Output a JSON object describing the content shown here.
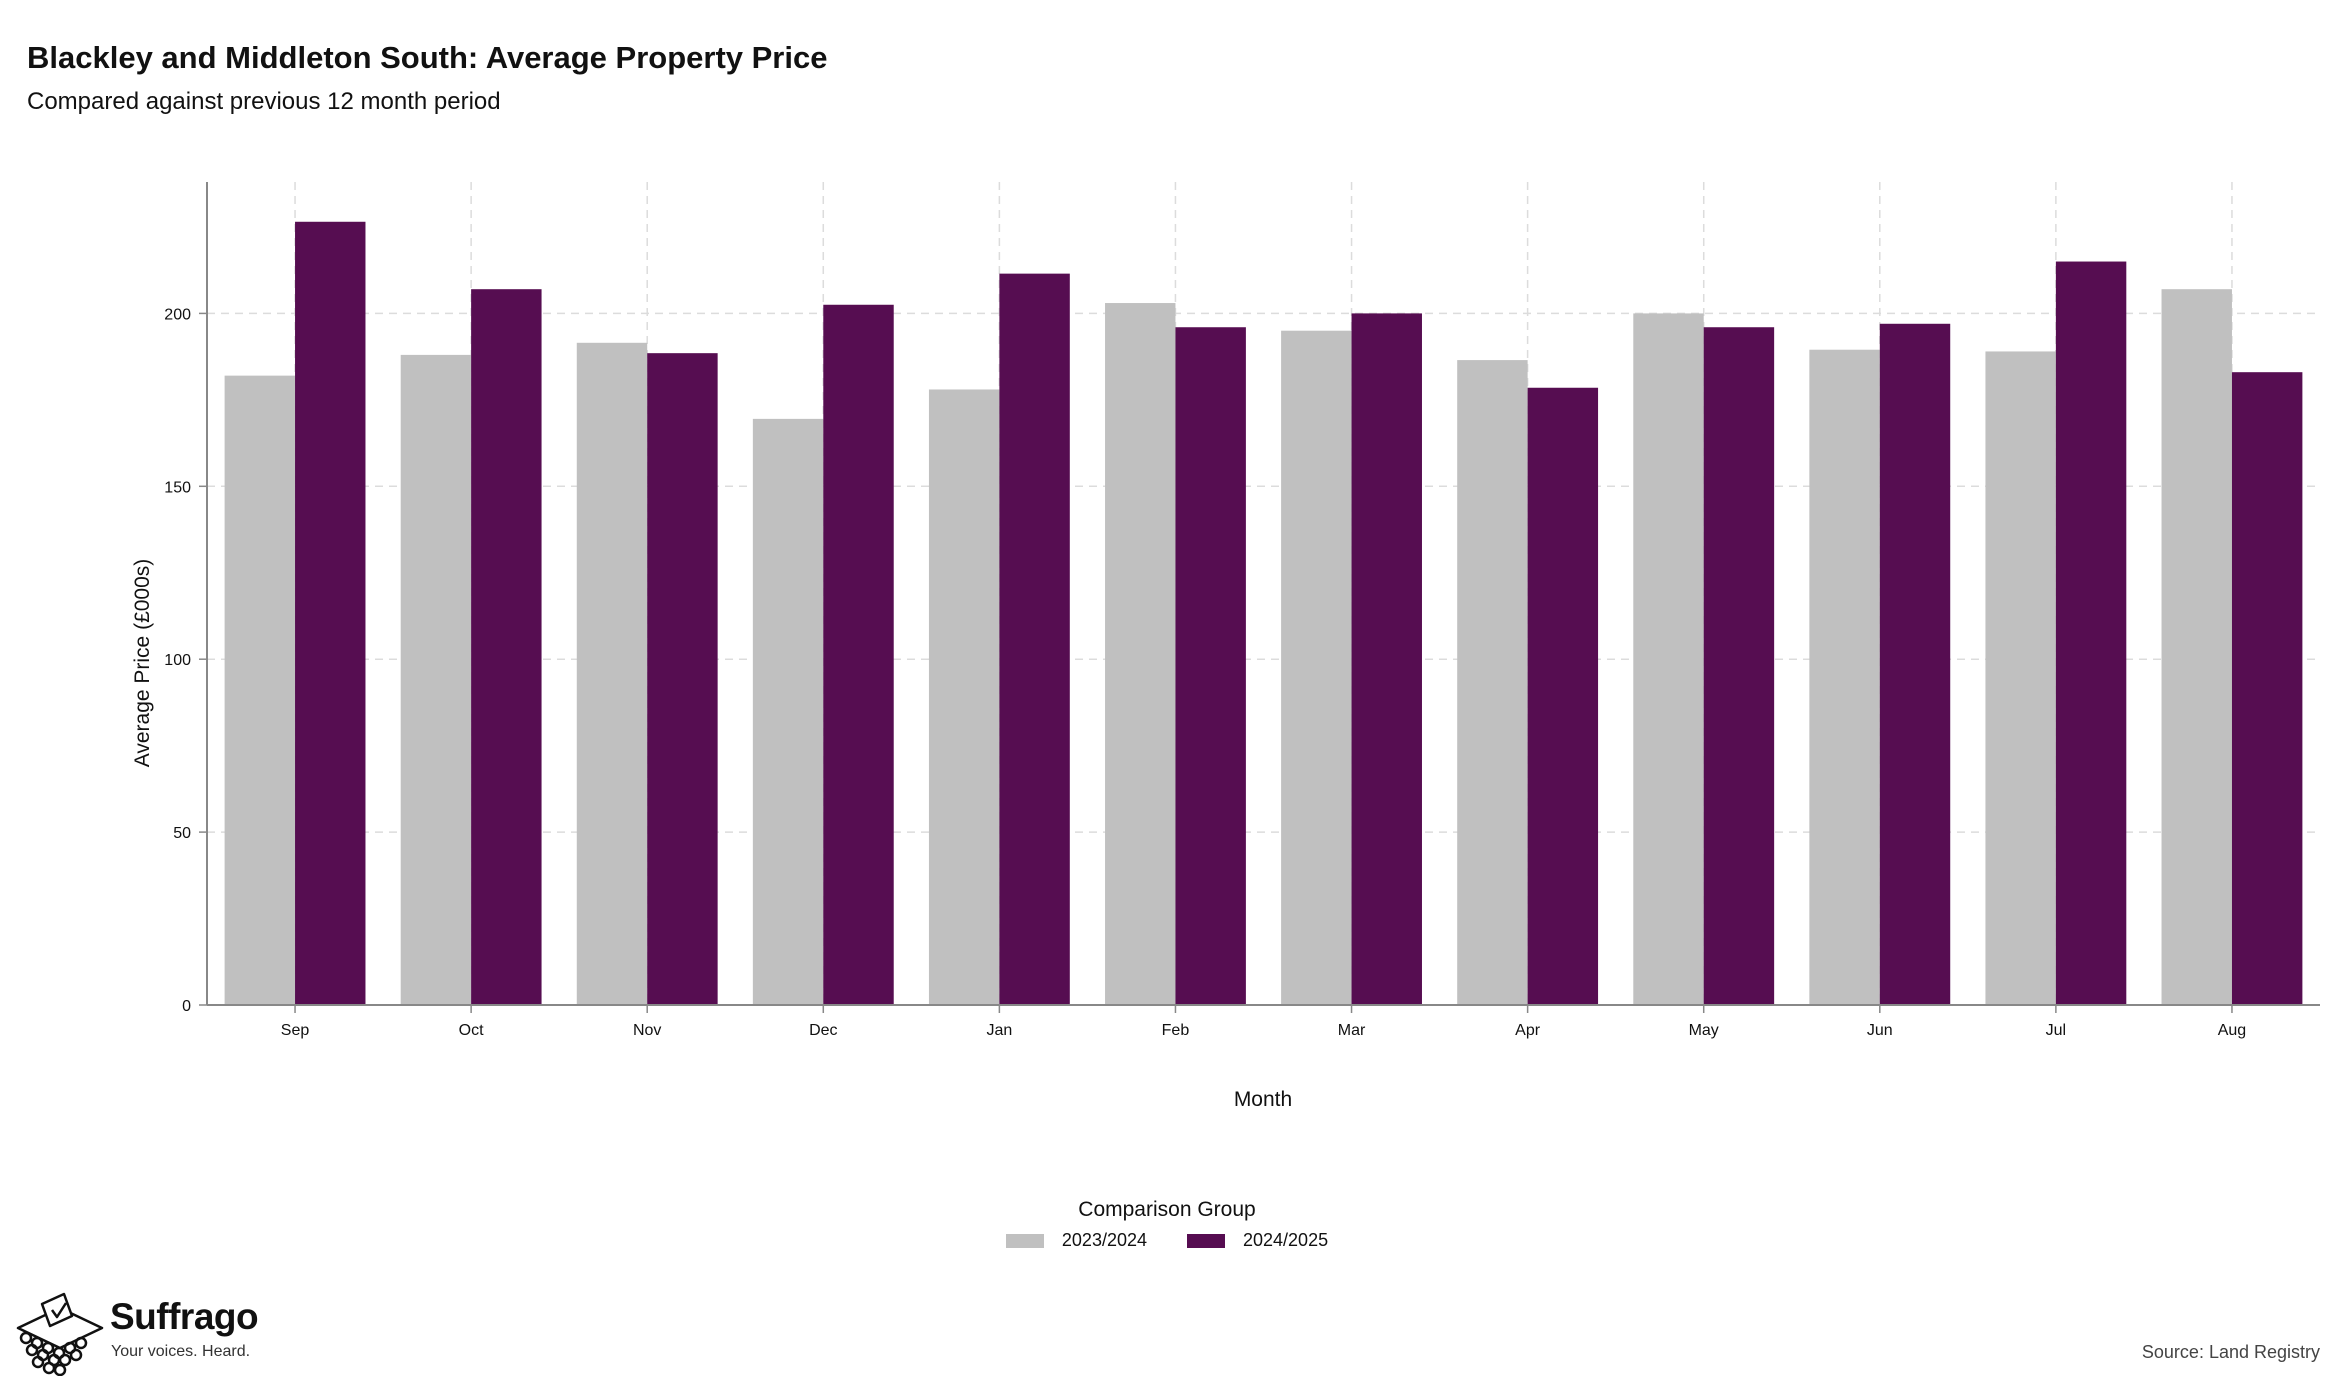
{
  "header": {
    "title": "Blackley and Middleton South: Average Property Price",
    "subtitle": "Compared against previous 12 month period"
  },
  "legend": {
    "title": "Comparison Group",
    "items": [
      {
        "label": "2023/2024",
        "color": "#c0c0c0"
      },
      {
        "label": "2024/2025",
        "color": "#560d51"
      }
    ]
  },
  "footer": {
    "brand": "Suffrago",
    "tagline": "Your voices. Heard.",
    "source": "Source: Land Registry"
  },
  "chart_data": {
    "type": "bar",
    "xlabel": "Month",
    "ylabel": "Average Price (£000s)",
    "ylim": [
      0,
      238
    ],
    "yticks": [
      0,
      50,
      100,
      150,
      200
    ],
    "grid": true,
    "legend_position": "bottom",
    "categories": [
      "Sep",
      "Oct",
      "Nov",
      "Dec",
      "Jan",
      "Feb",
      "Mar",
      "Apr",
      "May",
      "Jun",
      "Jul",
      "Aug"
    ],
    "series": [
      {
        "name": "2023/2024",
        "color": "#c0c0c0",
        "values": [
          182,
          188,
          191.5,
          169.5,
          178,
          203,
          195,
          186.5,
          200,
          189.5,
          189,
          207
        ]
      },
      {
        "name": "2024/2025",
        "color": "#560d51",
        "values": [
          226.5,
          207,
          188.5,
          202.5,
          211.5,
          196,
          200,
          178.5,
          196,
          197,
          215,
          183
        ]
      }
    ]
  }
}
